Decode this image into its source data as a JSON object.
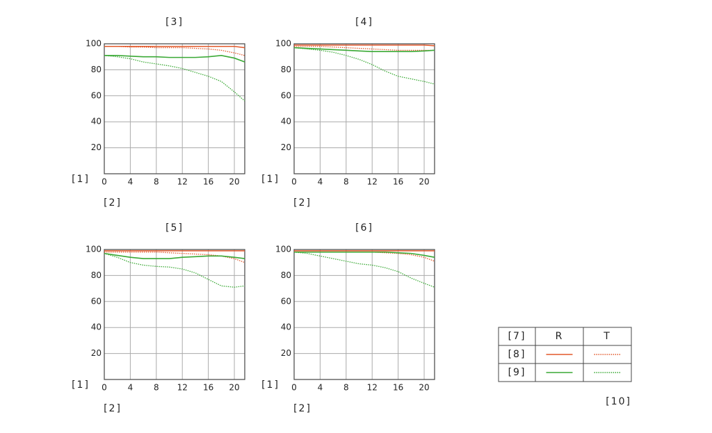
{
  "chart_data": [
    {
      "type": "line",
      "title": "[3]",
      "x_label": "[2]",
      "y_label": "[1]",
      "x": [
        0,
        2,
        4,
        6,
        8,
        10,
        12,
        14,
        16,
        18,
        20,
        21.6
      ],
      "xlim": [
        0,
        21.6
      ],
      "ylim": [
        0,
        100
      ],
      "xticks": [
        0,
        4,
        8,
        12,
        16,
        20
      ],
      "yticks": [
        20,
        40,
        60,
        80,
        100
      ],
      "grid": true,
      "series": [
        {
          "color": "#e2582a",
          "style": "solid",
          "values": [
            98,
            98,
            98,
            98,
            98,
            98,
            98,
            98,
            98,
            98,
            98,
            97
          ]
        },
        {
          "color": "#e2582a",
          "style": "dotted",
          "values": [
            98,
            98,
            97.5,
            97.5,
            97,
            97,
            97,
            96.5,
            96,
            95,
            93,
            91
          ]
        },
        {
          "color": "#3aa935",
          "style": "solid",
          "values": [
            91,
            91,
            90.5,
            90,
            90,
            89.5,
            89.5,
            89.5,
            90,
            91,
            89,
            86
          ]
        },
        {
          "color": "#3aa935",
          "style": "dotted",
          "values": [
            91,
            90,
            88.5,
            86,
            84.5,
            83,
            81,
            78,
            75,
            71,
            63,
            56
          ]
        }
      ]
    },
    {
      "type": "line",
      "title": "[4]",
      "x_label": "[2]",
      "y_label": "[1]",
      "x": [
        0,
        2,
        4,
        6,
        8,
        10,
        12,
        14,
        16,
        18,
        20,
        21.6
      ],
      "xlim": [
        0,
        21.6
      ],
      "ylim": [
        0,
        100
      ],
      "xticks": [
        0,
        4,
        8,
        12,
        16,
        20
      ],
      "yticks": [
        20,
        40,
        60,
        80,
        100
      ],
      "grid": true,
      "series": [
        {
          "color": "#e2582a",
          "style": "solid",
          "values": [
            99,
            99,
            99,
            99,
            99,
            99,
            99,
            99,
            99,
            99,
            99,
            98.5
          ]
        },
        {
          "color": "#e2582a",
          "style": "dotted",
          "values": [
            98,
            98,
            98,
            97.5,
            97,
            96.5,
            96,
            95.5,
            95,
            95,
            95,
            95
          ]
        },
        {
          "color": "#3aa935",
          "style": "solid",
          "values": [
            97,
            96.5,
            96,
            95.5,
            95,
            94.5,
            94,
            94,
            94,
            94,
            94.5,
            95
          ]
        },
        {
          "color": "#3aa935",
          "style": "dotted",
          "values": [
            97,
            96,
            95,
            93.5,
            91,
            88,
            84,
            79,
            75,
            73,
            71,
            69
          ]
        }
      ]
    },
    {
      "type": "line",
      "title": "[5]",
      "x_label": "[2]",
      "y_label": "[1]",
      "x": [
        0,
        2,
        4,
        6,
        8,
        10,
        12,
        14,
        16,
        18,
        20,
        21.6
      ],
      "xlim": [
        0,
        21.6
      ],
      "ylim": [
        0,
        100
      ],
      "xticks": [
        0,
        4,
        8,
        12,
        16,
        20
      ],
      "yticks": [
        20,
        40,
        60,
        80,
        100
      ],
      "grid": true,
      "series": [
        {
          "color": "#e2582a",
          "style": "solid",
          "values": [
            99,
            99,
            99,
            99,
            99,
            99,
            99,
            99,
            99,
            99,
            99,
            99
          ]
        },
        {
          "color": "#e2582a",
          "style": "dotted",
          "values": [
            98,
            98,
            98,
            98,
            98,
            97.5,
            97,
            96.5,
            96,
            95,
            93,
            90
          ]
        },
        {
          "color": "#3aa935",
          "style": "solid",
          "values": [
            97,
            95.5,
            94,
            93,
            93,
            93,
            94,
            94.5,
            95,
            95,
            94,
            93
          ]
        },
        {
          "color": "#3aa935",
          "style": "dotted",
          "values": [
            97,
            94,
            90,
            88,
            87,
            86.5,
            85,
            82,
            77,
            72,
            71,
            72
          ]
        }
      ]
    },
    {
      "type": "line",
      "title": "[6]",
      "x_label": "[2]",
      "y_label": "[1]",
      "x": [
        0,
        2,
        4,
        6,
        8,
        10,
        12,
        14,
        16,
        18,
        20,
        21.6
      ],
      "xlim": [
        0,
        21.6
      ],
      "ylim": [
        0,
        100
      ],
      "xticks": [
        0,
        4,
        8,
        12,
        16,
        20
      ],
      "yticks": [
        20,
        40,
        60,
        80,
        100
      ],
      "grid": true,
      "series": [
        {
          "color": "#e2582a",
          "style": "solid",
          "values": [
            99,
            99,
            99,
            99,
            99,
            99,
            99,
            99,
            99,
            99,
            99,
            99
          ]
        },
        {
          "color": "#e2582a",
          "style": "dotted",
          "values": [
            98,
            98,
            98,
            98,
            98,
            98,
            98,
            97.5,
            97,
            96,
            94,
            91
          ]
        },
        {
          "color": "#3aa935",
          "style": "solid",
          "values": [
            98,
            98,
            98,
            98,
            98,
            98,
            98,
            98,
            97.5,
            97,
            95.5,
            94
          ]
        },
        {
          "color": "#3aa935",
          "style": "dotted",
          "values": [
            98,
            97,
            95,
            93,
            91,
            89,
            88,
            86,
            83,
            78,
            74,
            71
          ]
        }
      ]
    }
  ],
  "legend": {
    "title": "[7]",
    "columns": [
      "R",
      "T"
    ],
    "rows": [
      "[8]",
      "[9]"
    ]
  },
  "footnote": "[10]"
}
